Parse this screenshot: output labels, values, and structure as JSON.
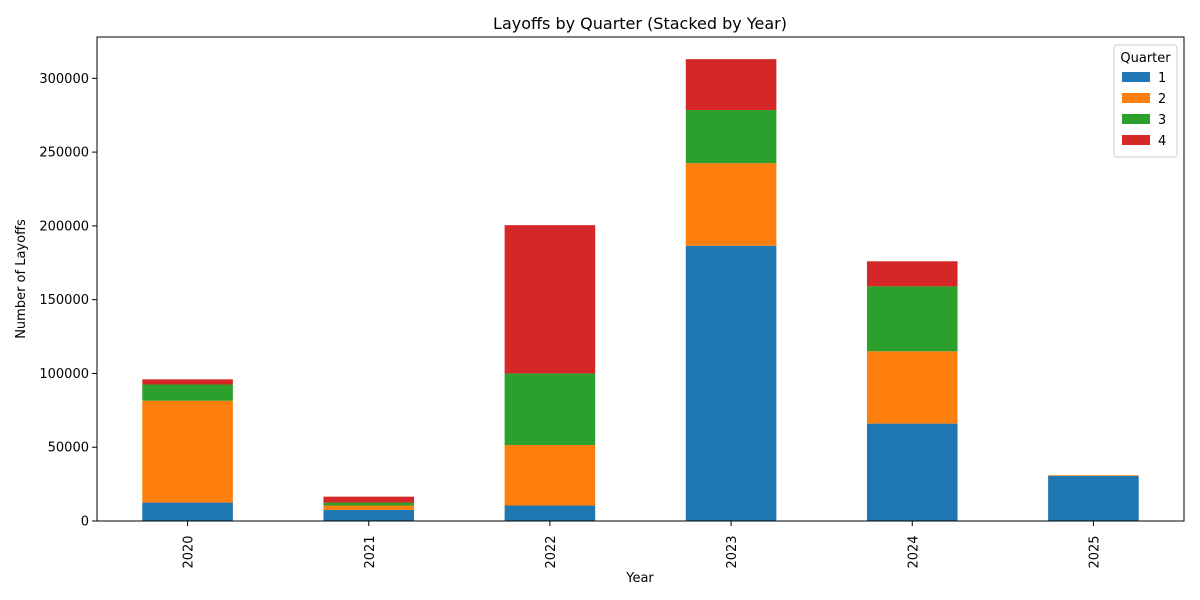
{
  "chart_data": {
    "type": "bar",
    "stacked": true,
    "title": "Layoffs by Quarter (Stacked by Year)",
    "xlabel": "Year",
    "ylabel": "Number of Layoffs",
    "categories": [
      "2020",
      "2021",
      "2022",
      "2023",
      "2024",
      "2025"
    ],
    "series": [
      {
        "name": "1",
        "color": "#1f77b4",
        "values": [
          12500,
          7500,
          10500,
          186500,
          66000,
          30500
        ]
      },
      {
        "name": "2",
        "color": "#ff7f0e",
        "values": [
          69000,
          3000,
          41000,
          56000,
          49000,
          500
        ]
      },
      {
        "name": "3",
        "color": "#2ca02c",
        "values": [
          11000,
          2000,
          48500,
          36000,
          44000,
          0
        ]
      },
      {
        "name": "4",
        "color": "#d62728",
        "values": [
          3500,
          4000,
          100500,
          34500,
          17000,
          0
        ]
      }
    ],
    "ylim": [
      0,
      328000
    ],
    "yticks": [
      0,
      50000,
      100000,
      150000,
      200000,
      250000,
      300000
    ],
    "legend": {
      "title": "Quarter",
      "position": "top-right"
    },
    "grid": false
  }
}
